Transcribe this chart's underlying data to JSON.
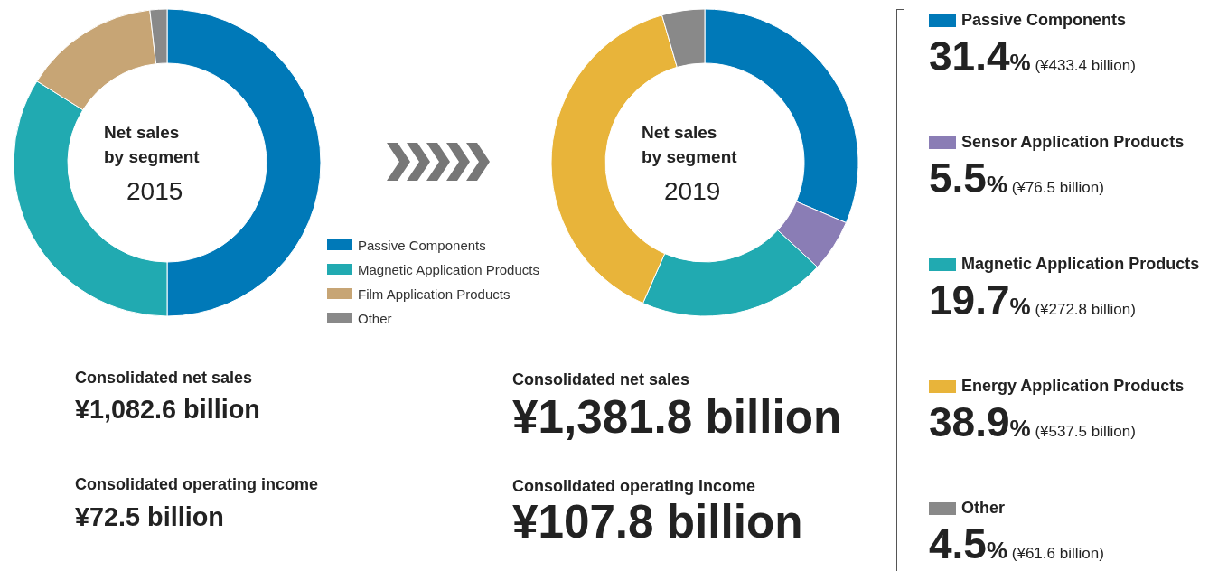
{
  "chart_data": [
    {
      "type": "donut",
      "title": "Net sales\nby segment",
      "subtitle": "2015",
      "categories": [
        "Passive Components",
        "Magnetic Application Products",
        "Film Application Products",
        "Other"
      ],
      "values": [
        50,
        33.9,
        14.3,
        1.8
      ],
      "colors": [
        "#0079b8",
        "#21aab1",
        "#c7a575",
        "#898989"
      ],
      "legend": "right",
      "annotations": [
        "Consolidated net sales",
        "¥1,082.6 billion",
        "Consolidated operating income",
        "¥72.5 billion"
      ]
    },
    {
      "type": "donut",
      "title": "Net sales\nby segment",
      "subtitle": "2019",
      "categories": [
        "Passive Components",
        "Sensor Application Products",
        "Magnetic Application Products",
        "Energy Application Products",
        "Other"
      ],
      "values": [
        31.4,
        5.5,
        19.7,
        38.9,
        4.5
      ],
      "colors": [
        "#0079b8",
        "#8a7db5",
        "#21aab1",
        "#e8b43a",
        "#898989"
      ],
      "value_labels": [
        "31.4% (¥433.4 billion)",
        "5.5% (¥76.5 billion)",
        "19.7% (¥272.8 billion)",
        "38.9% (¥537.5 billion)",
        "4.5% (¥61.6 billion)"
      ],
      "legend": "right",
      "annotations": [
        "Consolidated net sales",
        "¥1,381.8 billion",
        "Consolidated operating income",
        "¥107.8 billion"
      ]
    }
  ]
}
